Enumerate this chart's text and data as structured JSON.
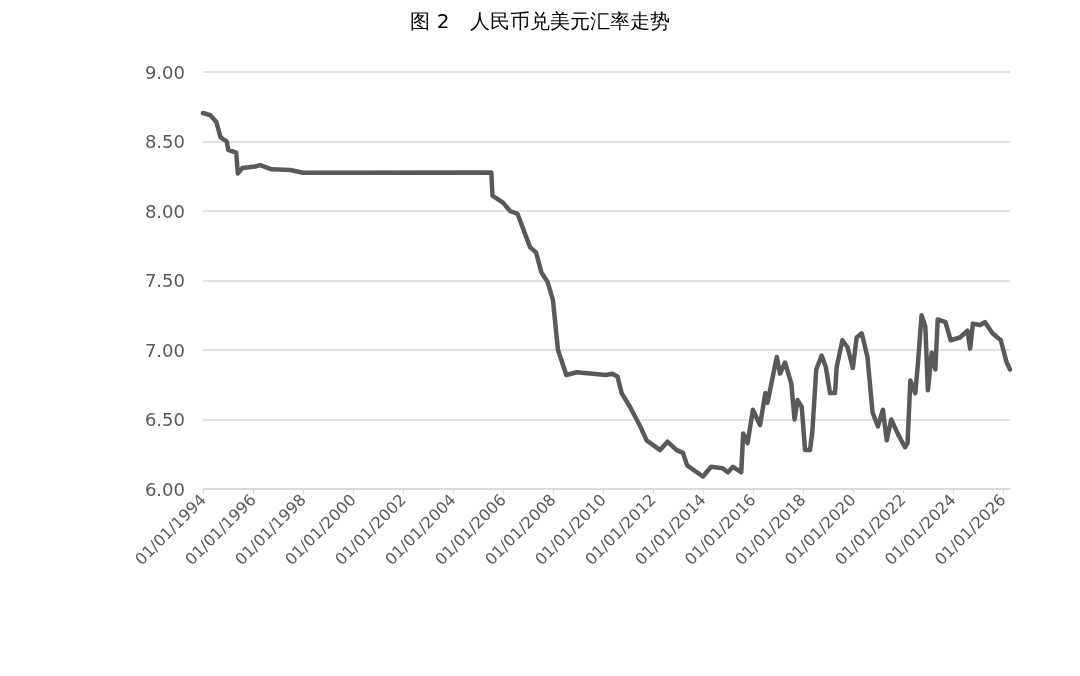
{
  "chart_data": {
    "type": "line",
    "title": "图 2　人民币兑美元汇率走势",
    "x": [
      "1994-01-01",
      "1994-04-15",
      "1994-07-15",
      "1994-09-15",
      "1994-12-15",
      "1995-01-05",
      "1995-05-01",
      "1995-05-25",
      "1995-08-01",
      "1996-02-01",
      "1996-04-15",
      "1996-10-01",
      "1997-07-01",
      "1998-01-01",
      "2005-07-15",
      "2005-08-01",
      "2006-01-01",
      "2006-04-15",
      "2006-08-01",
      "2007-02-01",
      "2007-05-01",
      "2007-07-15",
      "2007-10-15",
      "2008-01-01",
      "2008-03-15",
      "2008-07-15",
      "2008-12-15",
      "2010-02-15",
      "2010-05-15",
      "2010-08-01",
      "2010-10-01",
      "2011-02-01",
      "2011-07-01",
      "2011-10-01",
      "2012-04-15",
      "2012-08-01",
      "2012-12-15",
      "2013-03-15",
      "2013-05-15",
      "2014-01-01",
      "2014-05-01",
      "2014-10-15",
      "2015-01-01",
      "2015-03-15",
      "2015-07-15",
      "2015-08-12",
      "2015-10-15",
      "2016-01-01",
      "2016-04-15",
      "2016-07-01",
      "2016-08-01",
      "2016-12-15",
      "2017-02-01",
      "2017-04-15",
      "2017-07-15",
      "2017-09-01",
      "2017-10-15",
      "2017-12-15",
      "2018-02-01",
      "2018-04-15",
      "2018-05-20",
      "2018-07-15",
      "2018-10-01",
      "2018-12-01",
      "2019-02-01",
      "2019-04-15",
      "2019-05-10",
      "2019-08-01",
      "2019-10-15",
      "2020-01-01",
      "2020-02-25",
      "2020-05-10",
      "2020-08-01",
      "2020-10-15",
      "2021-01-01",
      "2021-03-15",
      "2021-05-10",
      "2021-07-15",
      "2021-10-15",
      "2022-02-01",
      "2022-03-10",
      "2022-04-20",
      "2022-07-01",
      "2022-08-10",
      "2022-10-01",
      "2022-11-25",
      "2023-01-01",
      "2023-02-25",
      "2023-04-20",
      "2023-05-25",
      "2023-09-15",
      "2023-12-01",
      "2024-04-15",
      "2024-08-01",
      "2024-09-10",
      "2024-10-20",
      "2025-02-01",
      "2025-04-15",
      "2025-08-01",
      "2025-12-01",
      "2026-02-25",
      "2026-04-15"
    ],
    "values": [
      8.705,
      8.69,
      8.64,
      8.53,
      8.5,
      8.44,
      8.42,
      8.27,
      8.31,
      8.32,
      8.33,
      8.3,
      8.295,
      8.275,
      8.277,
      8.11,
      8.06,
      8.0,
      7.98,
      7.74,
      7.7,
      7.56,
      7.49,
      7.36,
      7.0,
      6.82,
      6.84,
      6.82,
      6.83,
      6.81,
      6.69,
      6.59,
      6.45,
      6.35,
      6.28,
      6.34,
      6.28,
      6.26,
      6.17,
      6.09,
      6.16,
      6.15,
      6.12,
      6.16,
      6.12,
      6.4,
      6.33,
      6.57,
      6.46,
      6.69,
      6.62,
      6.95,
      6.83,
      6.91,
      6.76,
      6.5,
      6.64,
      6.59,
      6.28,
      6.28,
      6.42,
      6.86,
      6.96,
      6.88,
      6.69,
      6.69,
      6.88,
      7.07,
      7.02,
      6.87,
      7.09,
      7.12,
      6.95,
      6.55,
      6.45,
      6.57,
      6.35,
      6.5,
      6.4,
      6.3,
      6.33,
      6.78,
      6.69,
      6.91,
      7.25,
      7.17,
      6.71,
      6.98,
      6.86,
      7.22,
      7.2,
      7.07,
      7.09,
      7.14,
      7.01,
      7.19,
      7.18,
      7.2,
      7.12,
      7.07,
      6.91,
      6.86
    ],
    "color": "#595959",
    "line_style": "solid",
    "marker": "none",
    "xlim": [
      "1994-01-01",
      "2026-04-15"
    ],
    "xticks": [
      {
        "value": "1994-01-01",
        "label": "01/01/1994"
      },
      {
        "value": "1996-01-01",
        "label": "01/01/1996"
      },
      {
        "value": "1998-01-01",
        "label": "01/01/1998"
      },
      {
        "value": "2000-01-01",
        "label": "01/01/2000"
      },
      {
        "value": "2002-01-01",
        "label": "01/01/2002"
      },
      {
        "value": "2004-01-01",
        "label": "01/01/2004"
      },
      {
        "value": "2006-01-01",
        "label": "01/01/2006"
      },
      {
        "value": "2008-01-01",
        "label": "01/01/2008"
      },
      {
        "value": "2010-01-01",
        "label": "01/01/2010"
      },
      {
        "value": "2012-01-01",
        "label": "01/01/2012"
      },
      {
        "value": "2014-01-01",
        "label": "01/01/2014"
      },
      {
        "value": "2016-01-01",
        "label": "01/01/2016"
      },
      {
        "value": "2018-01-01",
        "label": "01/01/2018"
      },
      {
        "value": "2020-01-01",
        "label": "01/01/2020"
      },
      {
        "value": "2022-01-01",
        "label": "01/01/2022"
      },
      {
        "value": "2024-01-01",
        "label": "01/01/2024"
      },
      {
        "value": "2026-01-01",
        "label": "01/01/2026"
      }
    ],
    "ylim": [
      6,
      9
    ],
    "yticks": [
      {
        "value": 6,
        "label": "6.00"
      },
      {
        "value": 6.5,
        "label": "6.50"
      },
      {
        "value": 7,
        "label": "7.00"
      },
      {
        "value": 7.5,
        "label": "7.50"
      },
      {
        "value": 8,
        "label": "8.00"
      },
      {
        "value": 8.5,
        "label": "8.50"
      },
      {
        "value": 9,
        "label": "9.00"
      }
    ],
    "grid": "y"
  }
}
